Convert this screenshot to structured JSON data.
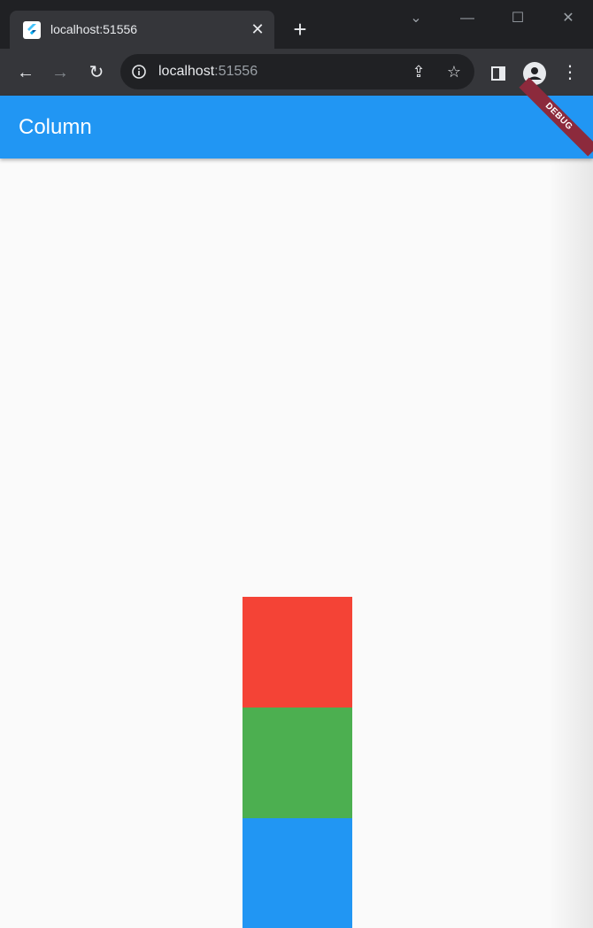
{
  "browser": {
    "tab": {
      "title": "localhost:51556",
      "favicon": "flutter-icon",
      "close_glyph": "✕"
    },
    "new_tab_glyph": "+",
    "window_controls": {
      "tab_search": "⌄",
      "minimize": "—",
      "maximize": "☐",
      "close": "✕"
    },
    "nav": {
      "back": "←",
      "forward": "→",
      "reload": "↻"
    },
    "omnibox": {
      "host": "localhost",
      "port": ":51556"
    },
    "toolbar_icons": [
      "share-icon",
      "star-icon",
      "side-panel-icon",
      "profile-icon",
      "menu-icon"
    ],
    "icon_glyphs": {
      "share": "⇪",
      "star": "☆",
      "side_panel": "▯",
      "menu": "⋮"
    }
  },
  "app": {
    "title": "Column",
    "debug_banner": "DEBUG",
    "colors": {
      "app_bar": "#2196f3",
      "background": "#fafafa"
    }
  },
  "column": {
    "boxes": [
      {
        "name": "red-box",
        "color": "#f44336"
      },
      {
        "name": "green-box",
        "color": "#4caf50"
      },
      {
        "name": "blue-box",
        "color": "#2196f3"
      }
    ]
  }
}
